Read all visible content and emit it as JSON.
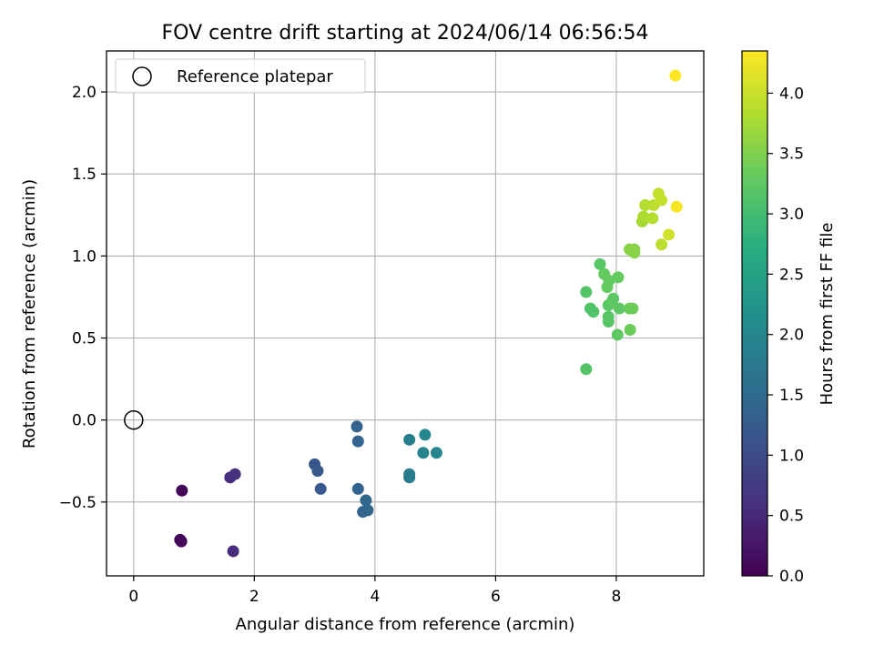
{
  "chart_data": {
    "type": "scatter",
    "title": "FOV centre drift starting at 2024/06/14 06:56:54",
    "xlabel": "Angular distance from reference (arcmin)",
    "ylabel": "Rotation from reference (arcmin)",
    "xlim": [
      -0.45,
      9.45
    ],
    "ylim": [
      -0.95,
      2.25
    ],
    "xticks": [
      0,
      2,
      4,
      6,
      8
    ],
    "yticks": [
      -0.5,
      0.0,
      0.5,
      1.0,
      1.5,
      2.0
    ],
    "ytick_labels": [
      "−0.5",
      "0.0",
      "0.5",
      "1.0",
      "1.5",
      "2.0"
    ],
    "grid": true,
    "legend": {
      "position": "top-left",
      "entries": [
        "Reference platepar"
      ]
    },
    "reference_point": {
      "x": 0,
      "y": 0
    },
    "colorbar": {
      "label": "Hours from first FF file",
      "colormap": "viridis",
      "range": [
        0.0,
        4.35
      ],
      "ticks": [
        0.0,
        0.5,
        1.0,
        1.5,
        2.0,
        2.5,
        3.0,
        3.5,
        4.0
      ],
      "tick_labels": [
        "0.0",
        "0.5",
        "1.0",
        "1.5",
        "2.0",
        "2.5",
        "3.0",
        "3.5",
        "4.0"
      ]
    },
    "points": [
      {
        "x": 0.8,
        "y": -0.43,
        "c": 0.05
      },
      {
        "x": 0.77,
        "y": -0.73,
        "c": 0.05
      },
      {
        "x": 0.79,
        "y": -0.74,
        "c": 0.08
      },
      {
        "x": 1.6,
        "y": -0.35,
        "c": 0.55
      },
      {
        "x": 1.68,
        "y": -0.33,
        "c": 0.6
      },
      {
        "x": 1.65,
        "y": -0.8,
        "c": 0.55
      },
      {
        "x": 3.0,
        "y": -0.27,
        "c": 1.15
      },
      {
        "x": 3.05,
        "y": -0.31,
        "c": 1.2
      },
      {
        "x": 3.1,
        "y": -0.42,
        "c": 1.2
      },
      {
        "x": 3.7,
        "y": -0.04,
        "c": 1.4
      },
      {
        "x": 3.72,
        "y": -0.13,
        "c": 1.4
      },
      {
        "x": 3.72,
        "y": -0.42,
        "c": 1.4
      },
      {
        "x": 3.85,
        "y": -0.49,
        "c": 1.45
      },
      {
        "x": 3.8,
        "y": -0.56,
        "c": 1.4
      },
      {
        "x": 3.88,
        "y": -0.55,
        "c": 1.45
      },
      {
        "x": 4.57,
        "y": -0.12,
        "c": 1.85
      },
      {
        "x": 4.57,
        "y": -0.33,
        "c": 1.8
      },
      {
        "x": 4.57,
        "y": -0.35,
        "c": 1.8
      },
      {
        "x": 4.8,
        "y": -0.2,
        "c": 1.95
      },
      {
        "x": 4.83,
        "y": -0.09,
        "c": 2.0
      },
      {
        "x": 5.02,
        "y": -0.2,
        "c": 2.0
      },
      {
        "x": 7.5,
        "y": 0.31,
        "c": 3.15
      },
      {
        "x": 7.5,
        "y": 0.78,
        "c": 3.15
      },
      {
        "x": 7.57,
        "y": 0.68,
        "c": 3.15
      },
      {
        "x": 7.62,
        "y": 0.66,
        "c": 3.15
      },
      {
        "x": 7.73,
        "y": 0.95,
        "c": 3.2
      },
      {
        "x": 7.8,
        "y": 0.89,
        "c": 3.3
      },
      {
        "x": 7.85,
        "y": 0.81,
        "c": 3.3
      },
      {
        "x": 7.88,
        "y": 0.85,
        "c": 3.3
      },
      {
        "x": 7.87,
        "y": 0.7,
        "c": 3.2
      },
      {
        "x": 7.87,
        "y": 0.63,
        "c": 3.2
      },
      {
        "x": 7.87,
        "y": 0.6,
        "c": 3.2
      },
      {
        "x": 7.93,
        "y": 0.72,
        "c": 3.25
      },
      {
        "x": 7.95,
        "y": 0.74,
        "c": 3.25
      },
      {
        "x": 8.03,
        "y": 0.87,
        "c": 3.3
      },
      {
        "x": 8.05,
        "y": 0.68,
        "c": 3.25
      },
      {
        "x": 8.02,
        "y": 0.52,
        "c": 3.25
      },
      {
        "x": 8.22,
        "y": 0.68,
        "c": 3.35
      },
      {
        "x": 8.27,
        "y": 0.68,
        "c": 3.35
      },
      {
        "x": 8.23,
        "y": 0.55,
        "c": 3.35
      },
      {
        "x": 8.22,
        "y": 1.04,
        "c": 3.55
      },
      {
        "x": 8.3,
        "y": 1.04,
        "c": 3.55
      },
      {
        "x": 8.3,
        "y": 1.02,
        "c": 3.55
      },
      {
        "x": 8.43,
        "y": 1.21,
        "c": 3.75
      },
      {
        "x": 8.45,
        "y": 1.24,
        "c": 3.8
      },
      {
        "x": 8.48,
        "y": 1.31,
        "c": 3.85
      },
      {
        "x": 8.6,
        "y": 1.23,
        "c": 3.85
      },
      {
        "x": 8.62,
        "y": 1.31,
        "c": 3.9
      },
      {
        "x": 8.7,
        "y": 1.38,
        "c": 3.95
      },
      {
        "x": 8.75,
        "y": 1.34,
        "c": 3.95
      },
      {
        "x": 8.75,
        "y": 1.07,
        "c": 3.9
      },
      {
        "x": 8.87,
        "y": 1.13,
        "c": 4.05
      },
      {
        "x": 9.0,
        "y": 1.3,
        "c": 4.3
      },
      {
        "x": 8.98,
        "y": 2.1,
        "c": 4.35
      }
    ]
  }
}
